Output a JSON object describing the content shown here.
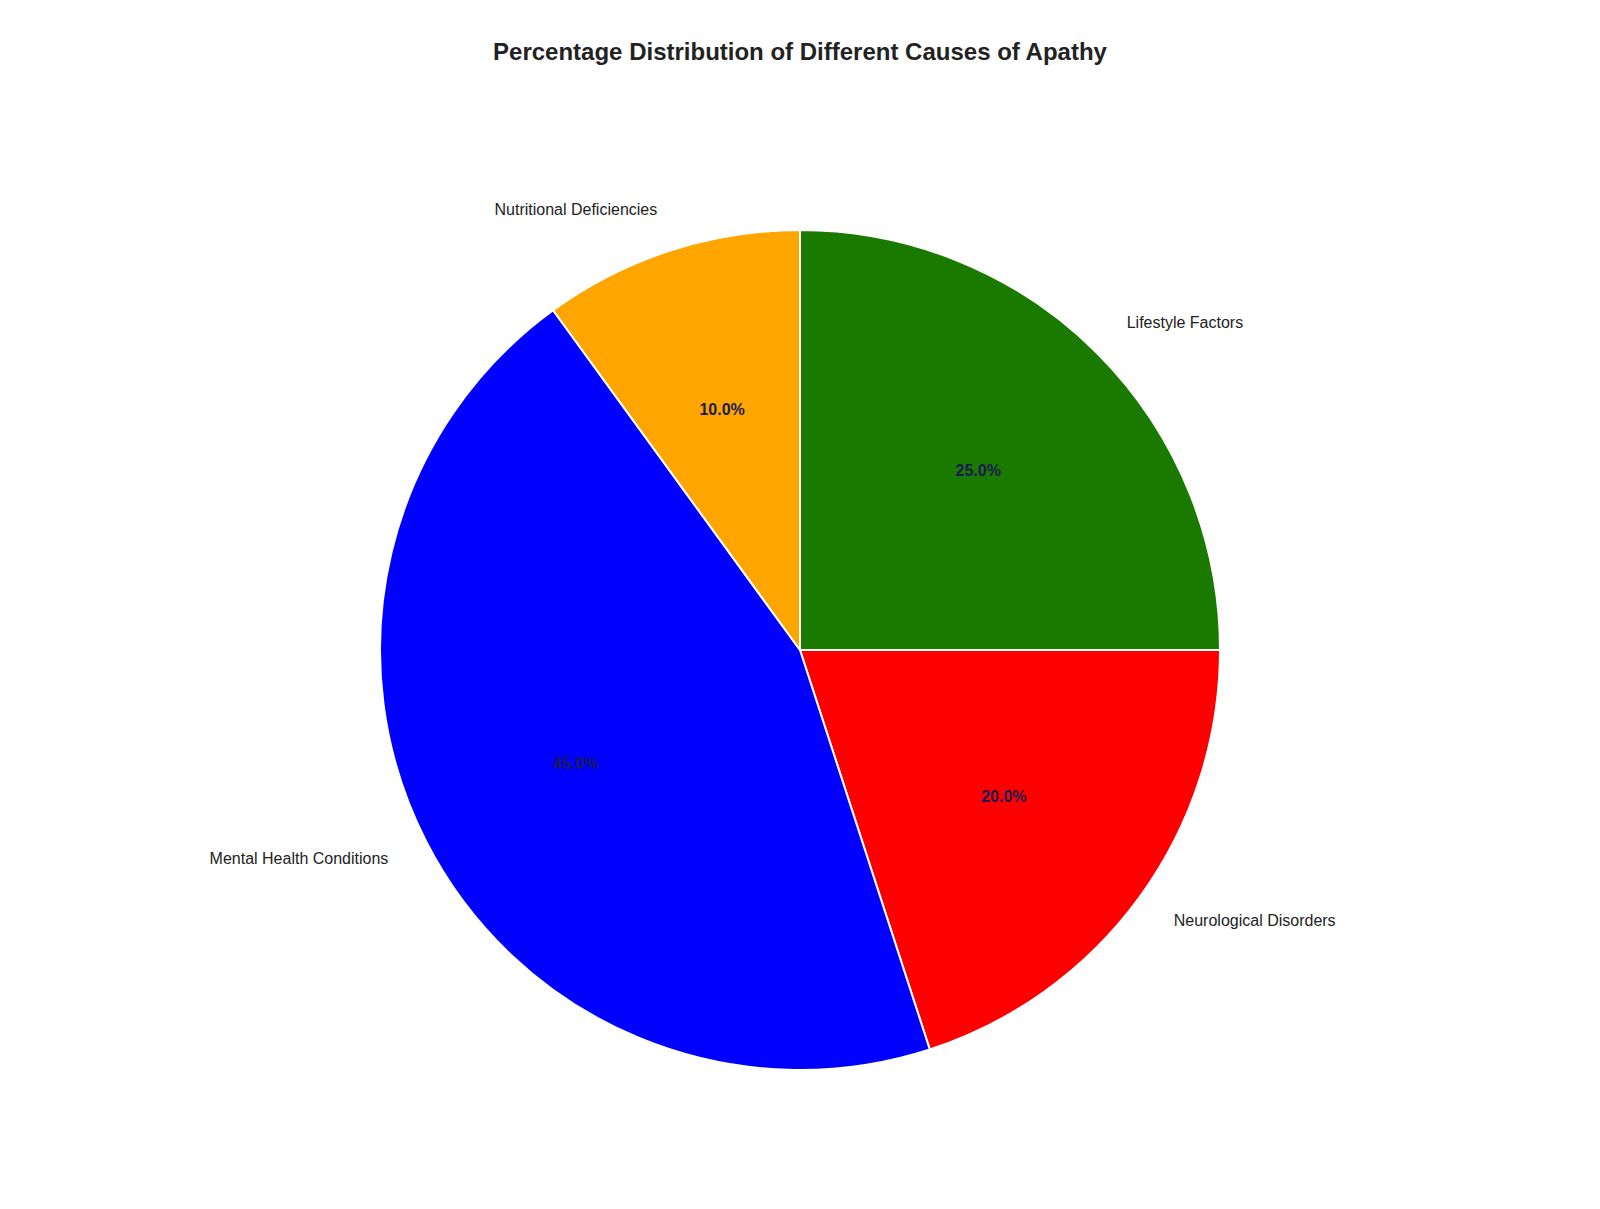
{
  "chart_data": {
    "type": "pie",
    "title": "Percentage Distribution of Different Causes of Apathy",
    "categories": [
      "Lifestyle Factors",
      "Neurological Disorders",
      "Mental Health Conditions",
      "Nutritional Deficiencies"
    ],
    "values": [
      25.0,
      20.0,
      45.0,
      10.0
    ],
    "value_labels": [
      "25.0%",
      "20.0%",
      "45.0%",
      "10.0%"
    ],
    "colors": [
      "#1a7a00",
      "#FF0000",
      "#0000FF",
      "#FFA500"
    ],
    "data_labels": true
  }
}
